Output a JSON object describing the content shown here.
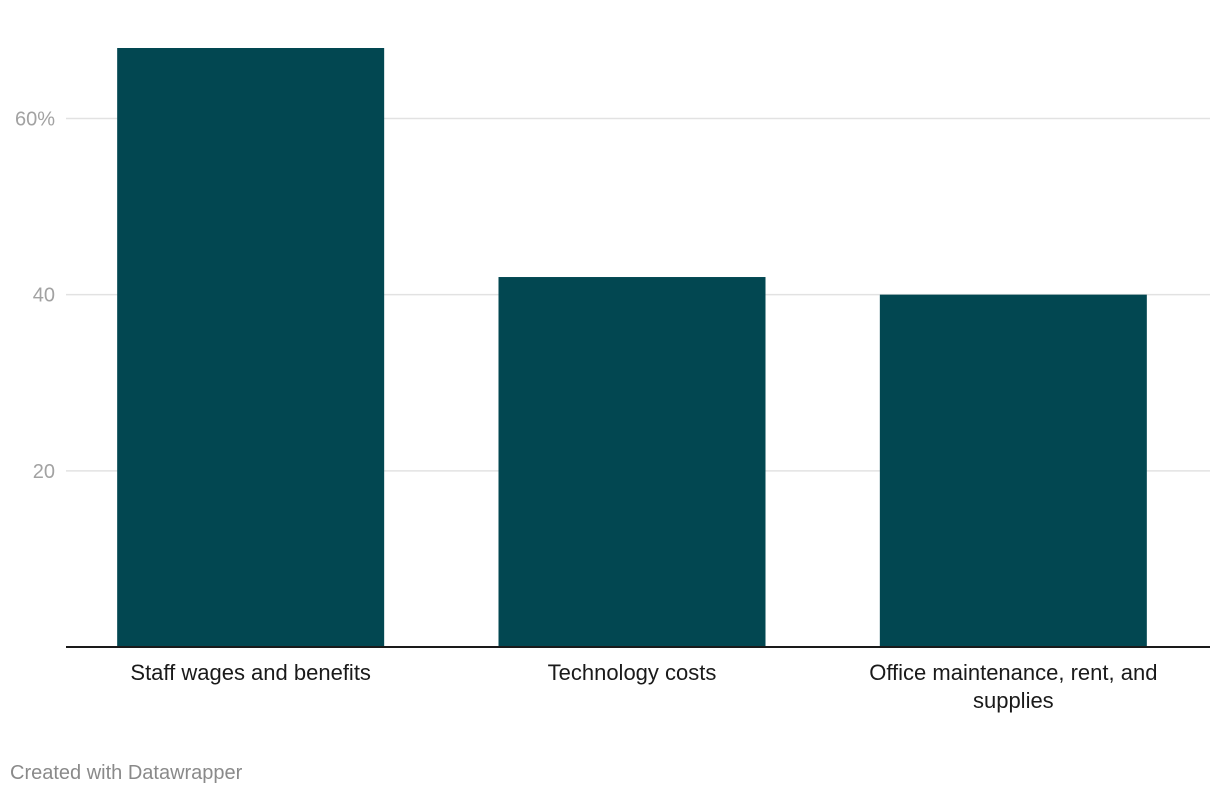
{
  "chart_data": {
    "type": "bar",
    "title": "",
    "xlabel": "",
    "ylabel": "",
    "categories": [
      "Staff wages and benefits",
      "Technology costs",
      "Office maintenance, rent, and supplies"
    ],
    "category_lines": [
      [
        "Staff wages and benefits"
      ],
      [
        "Technology costs"
      ],
      [
        "Office maintenance, rent, and supplies"
      ]
    ],
    "values": [
      68,
      42,
      40
    ],
    "unit": "%",
    "ylim": [
      0,
      68
    ],
    "yticks": [
      20,
      40,
      60
    ],
    "ytick_labels": [
      "20",
      "40",
      "60%"
    ],
    "grid": true,
    "bar_color": "#024751",
    "grid_color": "#e2e2e2",
    "tick_label_color": "#a2a2a2",
    "axis_color": "#1a1a1a",
    "category_label_color": "#1a1a1a"
  },
  "footer": {
    "credit": "Created with Datawrapper"
  }
}
